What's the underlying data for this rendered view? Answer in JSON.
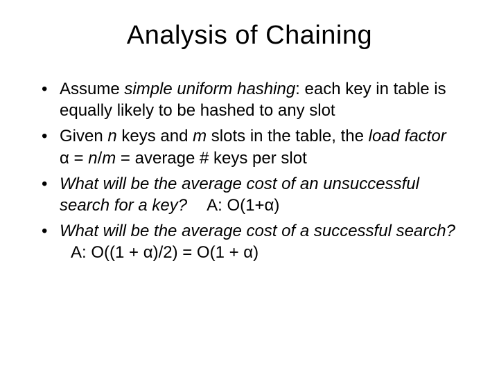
{
  "title": "Analysis of Chaining",
  "typography": {
    "title_fontsize": 38,
    "body_fontsize": 24,
    "font_family": "Arial",
    "text_color": "#000000",
    "background_color": "#ffffff"
  },
  "alpha": "α",
  "bullets": {
    "b1": {
      "pre": "Assume ",
      "em": "simple uniform hashing",
      "post": ": each key in table is equally likely to be hashed to any slot"
    },
    "b2": {
      "t1": "Given ",
      "n": "n",
      "t2": " keys and ",
      "m": "m",
      "t3": " slots in the table, the ",
      "lf": "load factor",
      "t4": " ",
      "eq1": " = ",
      "nm": "n",
      "slash": "/",
      "mm": "m",
      "t5": " = average # keys per slot"
    },
    "b3": {
      "em": "What will be the average cost of an unsuccessful search for a key?",
      "ans_pre": "A: O(1+",
      "ans_post": ")"
    },
    "b4": {
      "em": "What will be the average cost of a successful search?",
      "ans_pre": "A: O((1 + ",
      "ans_mid": ")/2) = O(1 + ",
      "ans_post": ")"
    }
  }
}
